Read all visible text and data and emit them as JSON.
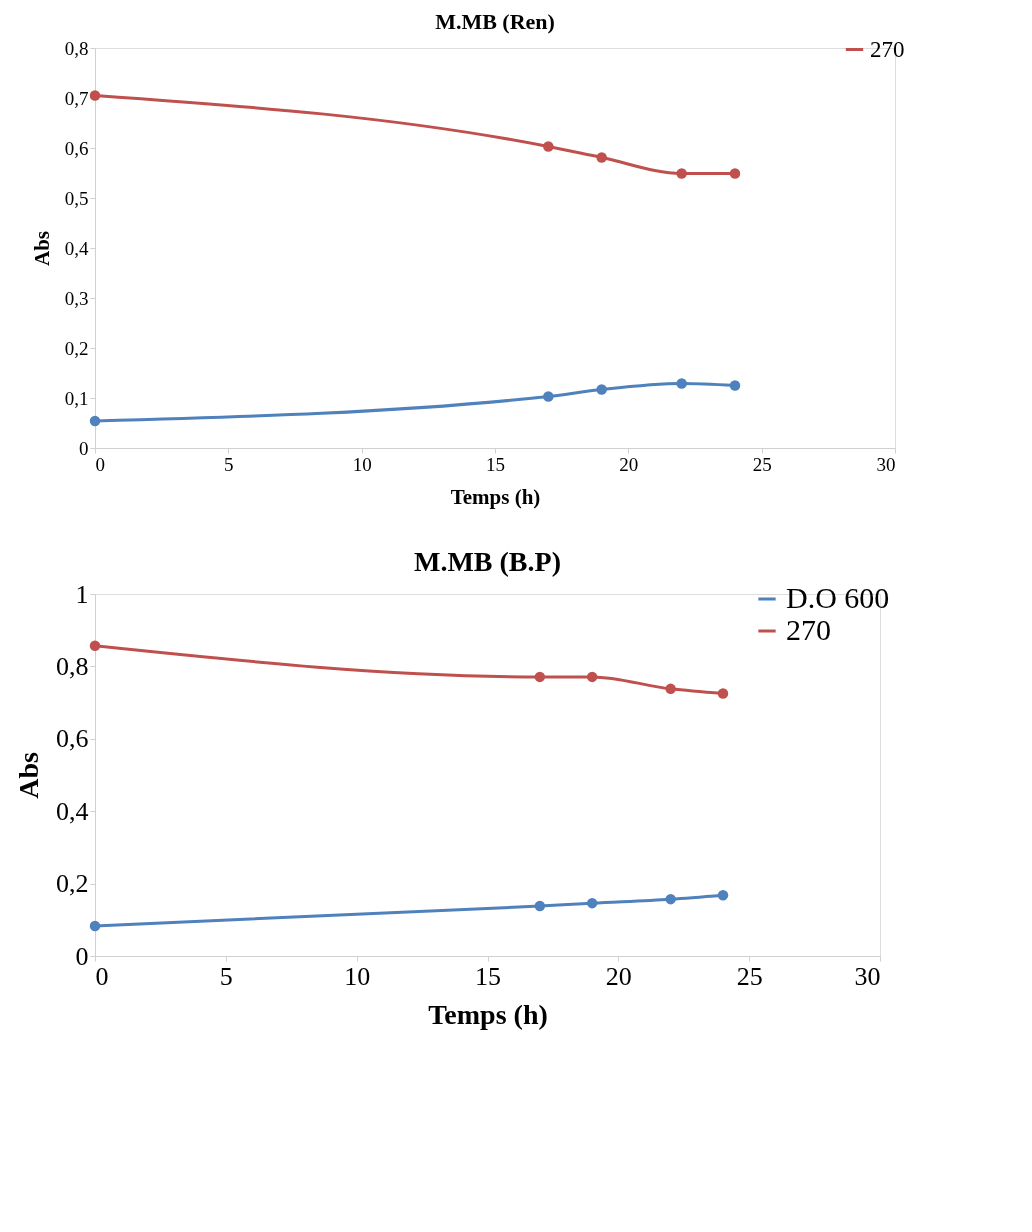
{
  "chart_data": [
    {
      "type": "line",
      "title": "M.MB (Ren)",
      "xlabel": "Temps (h)",
      "ylabel": "Abs",
      "x": [
        0,
        17,
        19,
        22,
        24
      ],
      "xlim": [
        0,
        30
      ],
      "xticks": [
        0,
        5,
        10,
        15,
        20,
        25,
        30
      ],
      "ylim": [
        0,
        0.8
      ],
      "yticks": [
        {
          "value": 0,
          "label": "0"
        },
        {
          "value": 0.1,
          "label": "0,1"
        },
        {
          "value": 0.2,
          "label": "0,2"
        },
        {
          "value": 0.3,
          "label": "0,3"
        },
        {
          "value": 0.4,
          "label": "0,4"
        },
        {
          "value": 0.5,
          "label": "0,5"
        },
        {
          "value": 0.6,
          "label": "0,6"
        },
        {
          "value": 0.7,
          "label": "0,7"
        },
        {
          "value": 0.8,
          "label": "0,8"
        }
      ],
      "grid": false,
      "legend": "top right",
      "marker": "circle",
      "line_style": "solid",
      "series": [
        {
          "name": "270",
          "color": "#c0504d",
          "values": [
            0.705,
            0.603,
            0.581,
            0.549,
            0.549
          ]
        },
        {
          "color": "#4f81bd",
          "values": [
            0.054,
            0.103,
            0.117,
            0.129,
            0.125
          ]
        }
      ]
    },
    {
      "type": "line",
      "title": "M.MB (B.P)",
      "xlabel": "Temps (h)",
      "ylabel": "Abs",
      "x": [
        0,
        17,
        19,
        22,
        24
      ],
      "xlim": [
        0,
        30
      ],
      "xticks": [
        0,
        5,
        10,
        15,
        20,
        25,
        30
      ],
      "ylim": [
        0,
        1
      ],
      "yticks": [
        {
          "value": 0,
          "label": "0"
        },
        {
          "value": 0.2,
          "label": "0,2"
        },
        {
          "value": 0.4,
          "label": "0,4"
        },
        {
          "value": 0.6,
          "label": "0,6"
        },
        {
          "value": 0.8,
          "label": "0,8"
        },
        {
          "value": 1,
          "label": "1"
        }
      ],
      "grid": false,
      "legend": "top right",
      "marker": "circle",
      "line_style": "solid",
      "series": [
        {
          "name": "D.O 600",
          "color": "#4f81bd",
          "values": [
            0.083,
            0.138,
            0.146,
            0.157,
            0.168
          ]
        },
        {
          "name": "270",
          "color": "#c0504d",
          "values": [
            0.857,
            0.771,
            0.771,
            0.738,
            0.725
          ]
        }
      ]
    }
  ]
}
